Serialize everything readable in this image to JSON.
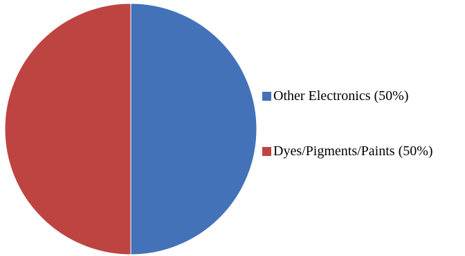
{
  "chart_data": {
    "type": "pie",
    "title": "",
    "legend_position": "right",
    "slices": [
      {
        "label": "Other Electronics (50%)",
        "value": 50,
        "color": "#4372B8"
      },
      {
        "label": "Dyes/Pigments/Paints (50%)",
        "value": 50,
        "color": "#BE4441"
      }
    ]
  }
}
